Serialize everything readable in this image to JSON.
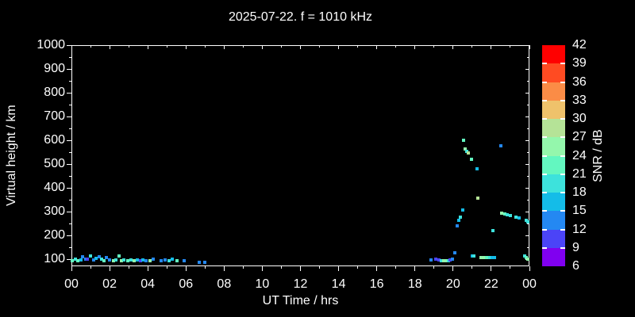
{
  "title": "2025-07-22. f = 1010 kHz",
  "chart_data": {
    "type": "scatter",
    "title": "2025-07-22. f = 1010 kHz",
    "xlabel": "UT Time / hrs",
    "ylabel": "Virtual height / km",
    "xlim": [
      0,
      24
    ],
    "ylim": [
      70,
      1000
    ],
    "background_color": "#000000",
    "axis_color": "#FFFFFF",
    "x_tick_hours": [
      0,
      2,
      4,
      6,
      8,
      10,
      12,
      14,
      16,
      18,
      20,
      22,
      24
    ],
    "x_tick_labels": [
      "00",
      "02",
      "04",
      "06",
      "08",
      "10",
      "12",
      "14",
      "16",
      "18",
      "20",
      "22",
      "00"
    ],
    "x_minor_hours": [
      1,
      3,
      5,
      7,
      9,
      11,
      13,
      15,
      17,
      19,
      21,
      23
    ],
    "y_tick_values": [
      100,
      200,
      300,
      400,
      500,
      600,
      700,
      800,
      900,
      1000
    ],
    "y_tick_labels": [
      "100",
      "200",
      "300",
      "400",
      "500",
      "600",
      "700",
      "800",
      "900",
      "1000"
    ],
    "y_minor_values": [
      150,
      250,
      350,
      450,
      550,
      650,
      750,
      850,
      950
    ],
    "colorbar": {
      "label": "SNR / dB",
      "levels": [
        6,
        9,
        12,
        15,
        18,
        21,
        24,
        27,
        30,
        33,
        36,
        39,
        42
      ],
      "level_labels": [
        "6",
        "9",
        "12",
        "15",
        "18",
        "21",
        "24",
        "27",
        "30",
        "33",
        "36",
        "39",
        "42"
      ],
      "segment_colors": [
        "#8000F0",
        "#4B44F7",
        "#2488F2",
        "#14BCE8",
        "#3DE2DC",
        "#63F7C0",
        "#94F7AC",
        "#B5E397",
        "#EFC26B",
        "#FB8C46",
        "#FF4B22",
        "#FF0000"
      ],
      "position": "right"
    },
    "points_format": [
      "time_hrs",
      "height_km",
      "snr_db"
    ],
    "points": [
      [
        0.05,
        95,
        21
      ],
      [
        0.2,
        100,
        18
      ],
      [
        0.35,
        95,
        21
      ],
      [
        0.5,
        98,
        15
      ],
      [
        0.6,
        110,
        12
      ],
      [
        0.75,
        100,
        12
      ],
      [
        0.85,
        100,
        9
      ],
      [
        1.0,
        113,
        18
      ],
      [
        1.15,
        98,
        12
      ],
      [
        1.3,
        105,
        15
      ],
      [
        1.45,
        110,
        12
      ],
      [
        1.6,
        100,
        18
      ],
      [
        1.7,
        95,
        21
      ],
      [
        1.85,
        108,
        12
      ],
      [
        2.0,
        97,
        12
      ],
      [
        2.2,
        95,
        24
      ],
      [
        2.35,
        98,
        18
      ],
      [
        2.5,
        112,
        21
      ],
      [
        2.6,
        95,
        24
      ],
      [
        2.75,
        97,
        18
      ],
      [
        2.95,
        95,
        21
      ],
      [
        3.1,
        97,
        18
      ],
      [
        3.3,
        95,
        24
      ],
      [
        3.45,
        97,
        15
      ],
      [
        3.6,
        95,
        9
      ],
      [
        3.75,
        98,
        15
      ],
      [
        3.9,
        95,
        12
      ],
      [
        4.1,
        95,
        24
      ],
      [
        4.3,
        100,
        12
      ],
      [
        4.7,
        95,
        12
      ],
      [
        4.9,
        98,
        12
      ],
      [
        5.1,
        95,
        18
      ],
      [
        5.3,
        100,
        15
      ],
      [
        5.55,
        95,
        21
      ],
      [
        5.9,
        93,
        12
      ],
      [
        6.7,
        88,
        12
      ],
      [
        7.0,
        88,
        12
      ],
      [
        18.85,
        97,
        12
      ],
      [
        19.1,
        100,
        9
      ],
      [
        19.25,
        98,
        9
      ],
      [
        19.4,
        95,
        18
      ],
      [
        19.5,
        93,
        24
      ],
      [
        19.65,
        93,
        24
      ],
      [
        19.75,
        95,
        18
      ],
      [
        19.85,
        98,
        9
      ],
      [
        19.95,
        100,
        12
      ],
      [
        20.1,
        127,
        12
      ],
      [
        20.2,
        240,
        12
      ],
      [
        20.3,
        262,
        15
      ],
      [
        20.4,
        278,
        18
      ],
      [
        20.5,
        308,
        15
      ],
      [
        20.55,
        600,
        21
      ],
      [
        20.65,
        563,
        24
      ],
      [
        20.72,
        553,
        18
      ],
      [
        20.8,
        547,
        27
      ],
      [
        20.95,
        520,
        21
      ],
      [
        21.25,
        480,
        15
      ],
      [
        21.3,
        357,
        27
      ],
      [
        21.0,
        115,
        15
      ],
      [
        21.1,
        112,
        18
      ],
      [
        21.45,
        107,
        24
      ],
      [
        21.6,
        107,
        24
      ],
      [
        21.75,
        107,
        21
      ],
      [
        21.9,
        107,
        18
      ],
      [
        22.05,
        107,
        15
      ],
      [
        22.15,
        107,
        15
      ],
      [
        22.1,
        220,
        18
      ],
      [
        22.5,
        577,
        12
      ],
      [
        22.55,
        293,
        24
      ],
      [
        22.7,
        290,
        21
      ],
      [
        22.85,
        287,
        18
      ],
      [
        23.0,
        283,
        18
      ],
      [
        23.3,
        277,
        18
      ],
      [
        23.45,
        275,
        15
      ],
      [
        23.85,
        263,
        18
      ],
      [
        23.95,
        258,
        18
      ],
      [
        23.75,
        113,
        18
      ],
      [
        23.85,
        107,
        21
      ],
      [
        23.97,
        100,
        24
      ]
    ]
  }
}
